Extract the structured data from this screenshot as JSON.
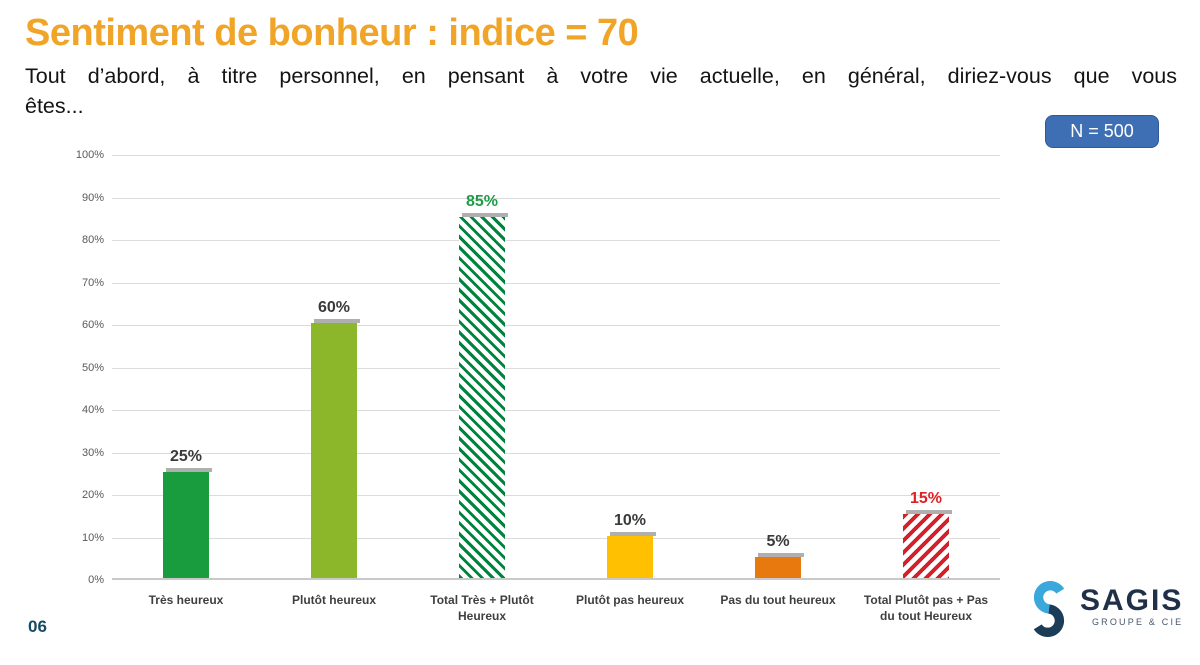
{
  "slide": {
    "title": "Sentiment de bonheur : indice = 70",
    "subtitle_line1": "Tout d’abord, à titre personnel, en pensant à votre vie actuelle, en général, diriez-vous que vous",
    "subtitle_line2": "êtes...",
    "sample_badge": "N = 500",
    "page_number": "06"
  },
  "chart_data": {
    "type": "bar",
    "title": "",
    "xlabel": "",
    "ylabel": "",
    "categories": [
      "Très heureux",
      "Plutôt heureux",
      "Total Très + Plutôt Heureux",
      "Plutôt pas heureux",
      "Pas du tout heureux",
      "Total Plutôt pas + Pas du tout Heureux"
    ],
    "values": [
      25,
      60,
      85,
      10,
      5,
      15
    ],
    "value_labels": [
      "25%",
      "60%",
      "85%",
      "10%",
      "5%",
      "15%"
    ],
    "ylim": [
      0,
      100
    ],
    "ytick_step": 10,
    "yticks": [
      "100%",
      "90%",
      "80%",
      "70%",
      "60%",
      "50%",
      "40%",
      "30%",
      "20%",
      "10%",
      "0%"
    ],
    "grid": true,
    "legend": "none",
    "bar_styles": [
      {
        "fill": "#189C3E",
        "hatch": "none",
        "stripe": 0,
        "gap": 0,
        "label_color": "#3A3A3A"
      },
      {
        "fill": "#8DB72B",
        "hatch": "none",
        "stripe": 0,
        "gap": 0,
        "label_color": "#3A3A3A"
      },
      {
        "fill": "#00843D",
        "hatch": "diagonal-back",
        "stripe": 3,
        "gap": 4.5,
        "label_color": "#1E9C45"
      },
      {
        "fill": "#FFC001",
        "hatch": "none",
        "stripe": 0,
        "gap": 0,
        "label_color": "#3A3A3A"
      },
      {
        "fill": "#E8790F",
        "hatch": "none",
        "stripe": 0,
        "gap": 0,
        "label_color": "#3A3A3A"
      },
      {
        "fill": "#D5202A",
        "hatch": "diagonal-fwd",
        "stripe": 4,
        "gap": 4.5,
        "label_color": "#E21E25"
      }
    ]
  },
  "logo": {
    "text": "SAGIS",
    "subtext": "GROUPE & CIE",
    "mark_icon": "sagis-s-icon"
  },
  "colors": {
    "title_orange": "#F0A428",
    "badge_bg": "#3E6FB4",
    "badge_border": "#2E5A9A",
    "grid_line": "#DCDCDC",
    "axis_line": "#C9C9C9",
    "ytick_color": "#595959",
    "cat_label": "#3F3F3F",
    "page_num": "#174A63",
    "logo_light_blue": "#3BA8DB",
    "logo_navy": "#1C3D58",
    "logo_navy_text": "#1F3048",
    "logo_sub": "#46586A"
  }
}
